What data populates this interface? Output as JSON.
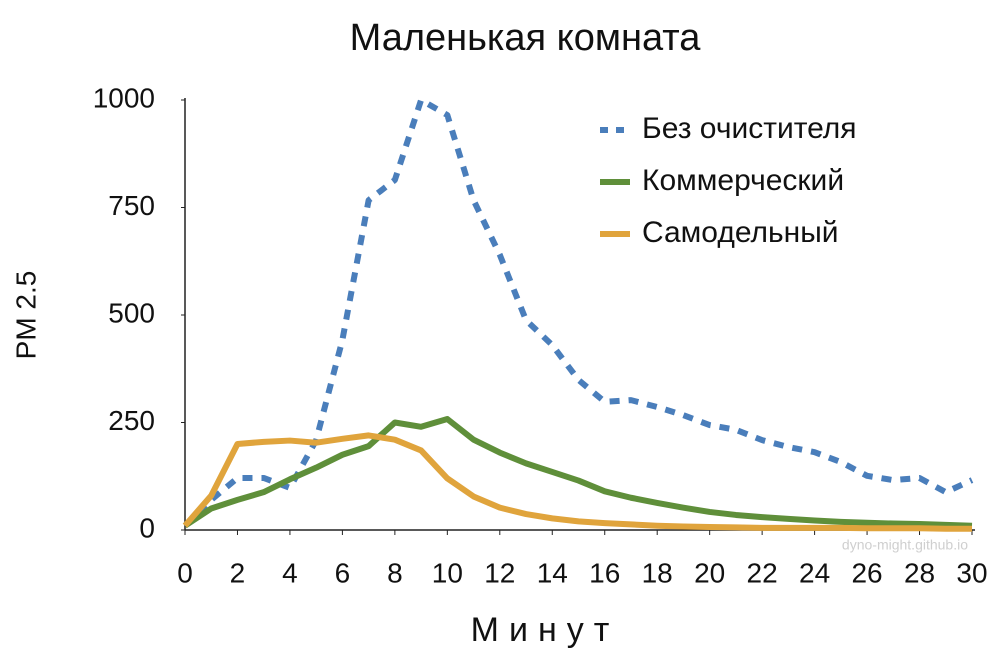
{
  "chart_data": {
    "type": "line",
    "title": "Маленькая комната",
    "x_label": "Минут",
    "y_label": "PM 2.5",
    "watermark": "dyno-might.github.io",
    "x": [
      0,
      1,
      2,
      3,
      4,
      5,
      6,
      7,
      8,
      9,
      10,
      11,
      12,
      13,
      14,
      15,
      16,
      17,
      18,
      19,
      20,
      21,
      22,
      23,
      24,
      25,
      26,
      27,
      28,
      29,
      30
    ],
    "series": [
      {
        "name": "Без очистителя",
        "color": "#4a7ebb",
        "dashed": true,
        "values": [
          10,
          70,
          121,
          121,
          98,
          209,
          442,
          767,
          814,
          1000,
          965,
          767,
          640,
          488,
          430,
          349,
          298,
          302,
          286,
          267,
          244,
          233,
          209,
          193,
          181,
          158,
          126,
          116,
          121,
          88,
          116
        ]
      },
      {
        "name": "Коммерческий",
        "color": "#5f8f3a",
        "dashed": false,
        "values": [
          10,
          50,
          70,
          88,
          118,
          145,
          175,
          195,
          250,
          240,
          258,
          210,
          180,
          155,
          135,
          115,
          90,
          75,
          63,
          52,
          42,
          35,
          30,
          26,
          22,
          19,
          17,
          15,
          14,
          12,
          10
        ]
      },
      {
        "name": "Самодельный",
        "color": "#e0a43c",
        "dashed": false,
        "values": [
          10,
          80,
          200,
          205,
          208,
          203,
          212,
          220,
          210,
          185,
          120,
          78,
          52,
          37,
          27,
          20,
          16,
          13,
          10,
          8,
          7,
          6,
          5,
          5,
          5,
          5,
          4,
          4,
          4,
          3,
          3
        ]
      }
    ],
    "xlim": [
      0,
      30
    ],
    "xticks": [
      0,
      2,
      4,
      6,
      8,
      10,
      12,
      14,
      16,
      18,
      20,
      22,
      24,
      26,
      28,
      30
    ],
    "ylim": [
      0,
      1000
    ],
    "yticks": [
      0,
      250,
      500,
      750,
      1000
    ],
    "grid": false,
    "legend": "upper right"
  }
}
